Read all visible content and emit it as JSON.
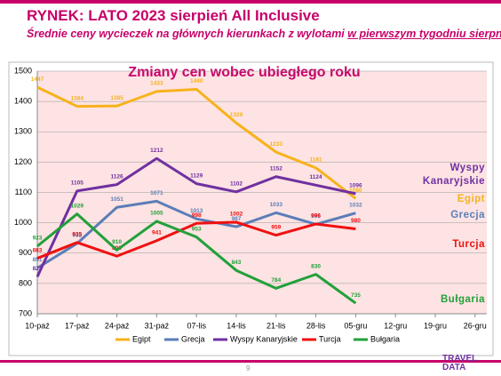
{
  "header": {
    "title": "RYNEK: LATO 2023 sierpień All Inclusive",
    "subtitle": [
      "Średnie ceny wycieczek na głównych kierunkach z wylotami ",
      "w pierwszym tygodniu sierpnia"
    ]
  },
  "chart_data": {
    "type": "line",
    "title": "Zmiany cen wobec ubiegłego roku",
    "categories": [
      "10-paź",
      "17-paź",
      "24-paź",
      "31-paź",
      "07-lis",
      "14-lis",
      "21-lis",
      "28-lis",
      "05-gru",
      "12-gru",
      "19-gru",
      "26-gru"
    ],
    "series": [
      {
        "name": "Egipt",
        "color": "#f7b21b",
        "values": [
          1447,
          1384,
          1385,
          1433,
          1440,
          1329,
          1233,
          1181,
          1080,
          null,
          null,
          null
        ]
      },
      {
        "name": "Grecja",
        "color": "#5b7db8",
        "values": [
          851,
          932,
          1051,
          1071,
          1013,
          987,
          1033,
          995,
          1032,
          null,
          null,
          null
        ]
      },
      {
        "name": "Wyspy Kanaryjskie",
        "color": "#7030a0",
        "values": [
          822,
          1105,
          1126,
          1212,
          1129,
          1102,
          1152,
          1124,
          1096,
          null,
          null,
          null
        ]
      },
      {
        "name": "Turcja",
        "color": "#f01010",
        "values": [
          883,
          935,
          890,
          941,
          998,
          1002,
          959,
          996,
          980,
          null,
          null,
          null
        ]
      },
      {
        "name": "Bułgaria",
        "color": "#22a03a",
        "values": [
          923,
          1029,
          910,
          1005,
          953,
          843,
          784,
          830,
          735,
          null,
          null,
          null
        ]
      }
    ],
    "ylim": [
      700,
      1500
    ],
    "yticks": [
      700,
      800,
      900,
      1000,
      1100,
      1200,
      1300,
      1400,
      1500
    ],
    "grid": true
  },
  "page_number": "9",
  "logo": [
    "TRAVEL",
    "DATA"
  ]
}
